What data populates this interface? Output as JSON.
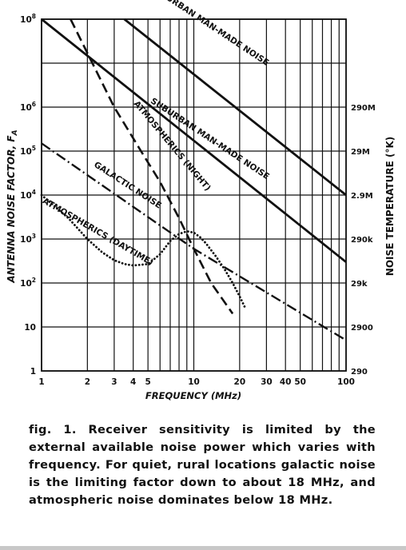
{
  "chart_data": {
    "type": "line",
    "xlabel": "FREQUENCY (MHz)",
    "ylabel_left": "ANTENNA NOISE FACTOR, F",
    "ylabel_left_subscript": "A",
    "ylabel_right": "NOISE TEMPERATURE (°K)",
    "x_scale": "log",
    "y_scale": "log",
    "xlim": [
      1,
      100
    ],
    "ylim": [
      1,
      100000000
    ],
    "grid": true,
    "x_ticks": [
      {
        "value": 1,
        "label": "1"
      },
      {
        "value": 2,
        "label": "2"
      },
      {
        "value": 3,
        "label": "3"
      },
      {
        "value": 4,
        "label": "4"
      },
      {
        "value": 5,
        "label": "5"
      },
      {
        "value": 10,
        "label": "10"
      },
      {
        "value": 20,
        "label": "20"
      },
      {
        "value": 30,
        "label": "30"
      },
      {
        "value": 40,
        "label": "40"
      },
      {
        "value": 50,
        "label": "50"
      },
      {
        "value": 100,
        "label": "100"
      }
    ],
    "x_grid": [
      1,
      2,
      3,
      4,
      5,
      6,
      7,
      8,
      9,
      10,
      20,
      30,
      40,
      50,
      60,
      70,
      80,
      90,
      100
    ],
    "y_ticks_left": [
      {
        "value": 100000000,
        "label": "10",
        "sup": "8"
      },
      {
        "value": 1000000,
        "label": "10",
        "sup": "6"
      },
      {
        "value": 100000,
        "label": "10",
        "sup": "5"
      },
      {
        "value": 10000,
        "label": "10",
        "sup": "4"
      },
      {
        "value": 1000,
        "label": "10",
        "sup": "3"
      },
      {
        "value": 100,
        "label": "10",
        "sup": "2"
      },
      {
        "value": 10,
        "label": "10",
        "sup": ""
      },
      {
        "value": 1,
        "label": "1",
        "sup": ""
      }
    ],
    "y_ticks_right": [
      {
        "value": 1000000,
        "label": "290M"
      },
      {
        "value": 100000,
        "label": "29M"
      },
      {
        "value": 10000,
        "label": "2.9M"
      },
      {
        "value": 1000,
        "label": "290k"
      },
      {
        "value": 100,
        "label": "29k"
      },
      {
        "value": 10,
        "label": "2900"
      },
      {
        "value": 1,
        "label": "290"
      }
    ],
    "series": [
      {
        "name": "URBAN MAN-MADE NOISE",
        "style": "solid",
        "points": [
          [
            3.5,
            100000000
          ],
          [
            100,
            10000
          ]
        ]
      },
      {
        "name": "SUBURBAN MAN-MADE NOISE",
        "style": "solid",
        "points": [
          [
            1,
            100000000
          ],
          [
            100,
            300
          ]
        ]
      },
      {
        "name": "ATMOSPHERICS (NIGHT)",
        "style": "dashed",
        "points": [
          [
            1.55,
            100000000
          ],
          [
            3,
            1000000
          ],
          [
            4.5,
            100000
          ],
          [
            6,
            20000
          ],
          [
            8,
            3000
          ],
          [
            10,
            600
          ],
          [
            13,
            100
          ],
          [
            18,
            20
          ]
        ]
      },
      {
        "name": "GALACTIC NOISE",
        "style": "dash-dot",
        "points": [
          [
            1,
            150000
          ],
          [
            10,
            600
          ],
          [
            100,
            5
          ]
        ]
      },
      {
        "name": "ATMOSPHERICS (DAYTIME)",
        "style": "dotted",
        "points": [
          [
            1,
            10000
          ],
          [
            1.5,
            3000
          ],
          [
            2,
            1000
          ],
          [
            2.5,
            500
          ],
          [
            3,
            330
          ],
          [
            3.5,
            270
          ],
          [
            4,
            250
          ],
          [
            5,
            270
          ],
          [
            6,
            450
          ],
          [
            7,
            900
          ],
          [
            8,
            1300
          ],
          [
            9,
            1500
          ],
          [
            10,
            1400
          ],
          [
            11,
            1100
          ],
          [
            12,
            800
          ],
          [
            14,
            400
          ],
          [
            16,
            200
          ],
          [
            18,
            100
          ],
          [
            20,
            50
          ],
          [
            22,
            25
          ]
        ]
      }
    ],
    "annotations": [
      {
        "text": "URBAN MAN-MADE NOISE",
        "series": "URBAN MAN-MADE NOISE"
      },
      {
        "text": "SUBURBAN MAN-MADE NOISE",
        "series": "SUBURBAN MAN-MADE NOISE"
      },
      {
        "text": "ATMOSPHERICS (NIGHT)",
        "series": "ATMOSPHERICS (NIGHT)"
      },
      {
        "text": "GALACTIC NOISE",
        "series": "GALACTIC NOISE"
      },
      {
        "text": "ATMOSPHERICS (DAYTIME)",
        "series": "ATMOSPHERICS (DAYTIME)"
      }
    ]
  },
  "caption": "fig. 1. Receiver sensitivity is limited by the external available noise power which varies with frequency. For quiet, rural locations galactic noise is the limiting factor down to about 18 MHz, and atmospheric noise dominates below 18 MHz."
}
